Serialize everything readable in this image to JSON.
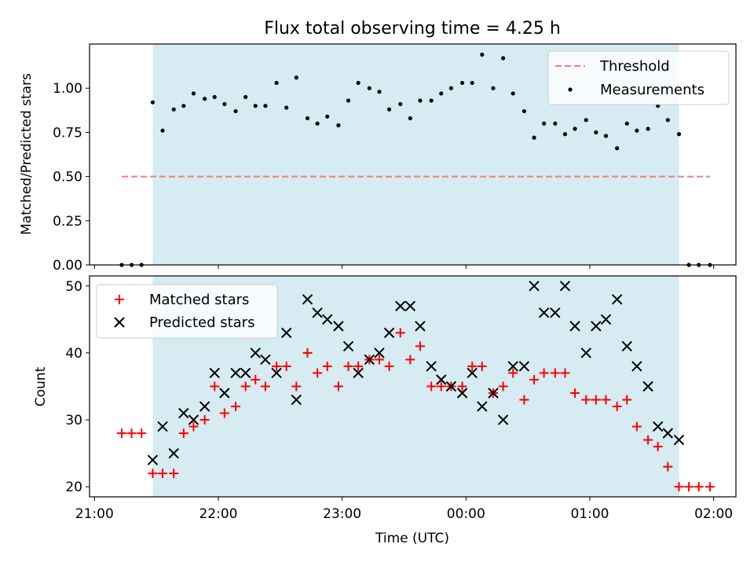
{
  "chart_data": [
    {
      "type": "scatter",
      "title": "Flux total observing time = 4.25 h",
      "ylabel": "Matched/Predicted stars",
      "xlabel": "",
      "xlim": [
        -0.04,
        5.18
      ],
      "ylim": [
        0,
        1.25
      ],
      "yticks": [
        0,
        0.25,
        0.5,
        0.75,
        1.0
      ],
      "ytick_labels": [
        "0.00",
        "0.25",
        "0.50",
        "0.75",
        "1.00"
      ],
      "xticks": [
        0,
        1,
        2,
        3,
        4,
        5
      ],
      "shade": {
        "start": 0.47,
        "end": 4.72,
        "color": "#add8e6"
      },
      "legend": {
        "position": "top-right",
        "threshold_label": "Threshold",
        "measurements_label": "Measurements"
      },
      "threshold": {
        "name": "Threshold",
        "value": 0.5,
        "x_start": 0.22,
        "x_end": 4.97,
        "color": "#ff7777"
      },
      "series": [
        {
          "name": "Measurements",
          "color": "#000000",
          "points": [
            [
              0.22,
              0
            ],
            [
              0.3,
              0
            ],
            [
              0.38,
              0
            ],
            [
              0.47,
              0.92
            ],
            [
              0.55,
              0.76
            ],
            [
              0.64,
              0.88
            ],
            [
              0.72,
              0.9
            ],
            [
              0.8,
              0.97
            ],
            [
              0.89,
              0.94
            ],
            [
              0.97,
              0.95
            ],
            [
              1.05,
              0.91
            ],
            [
              1.14,
              0.87
            ],
            [
              1.22,
              0.95
            ],
            [
              1.3,
              0.9
            ],
            [
              1.38,
              0.9
            ],
            [
              1.47,
              1.03
            ],
            [
              1.55,
              0.89
            ],
            [
              1.63,
              1.06
            ],
            [
              1.72,
              0.83
            ],
            [
              1.8,
              0.8
            ],
            [
              1.88,
              0.84
            ],
            [
              1.97,
              0.79
            ],
            [
              2.05,
              0.93
            ],
            [
              2.13,
              1.03
            ],
            [
              2.22,
              1.0
            ],
            [
              2.3,
              0.98
            ],
            [
              2.38,
              0.88
            ],
            [
              2.47,
              0.91
            ],
            [
              2.55,
              0.83
            ],
            [
              2.63,
              0.93
            ],
            [
              2.72,
              0.93
            ],
            [
              2.8,
              0.97
            ],
            [
              2.88,
              1.0
            ],
            [
              2.97,
              1.03
            ],
            [
              3.05,
              1.03
            ],
            [
              3.13,
              1.19
            ],
            [
              3.22,
              1.0
            ],
            [
              3.3,
              1.17
            ],
            [
              3.38,
              0.97
            ],
            [
              3.47,
              0.87
            ],
            [
              3.55,
              0.72
            ],
            [
              3.63,
              0.8
            ],
            [
              3.72,
              0.8
            ],
            [
              3.8,
              0.74
            ],
            [
              3.88,
              0.77
            ],
            [
              3.97,
              0.82
            ],
            [
              4.05,
              0.75
            ],
            [
              4.13,
              0.73
            ],
            [
              4.22,
              0.66
            ],
            [
              4.3,
              0.8
            ],
            [
              4.38,
              0.76
            ],
            [
              4.47,
              0.77
            ],
            [
              4.55,
              0.9
            ],
            [
              4.63,
              0.82
            ],
            [
              4.72,
              0.74
            ],
            [
              4.8,
              0
            ],
            [
              4.88,
              0
            ],
            [
              4.97,
              0
            ]
          ]
        }
      ]
    },
    {
      "type": "scatter",
      "title": "",
      "xlabel": "Time (UTC)",
      "ylabel": "Count",
      "xlim": [
        -0.04,
        5.18
      ],
      "ylim": [
        18.5,
        51.5
      ],
      "yticks": [
        20,
        30,
        40,
        50
      ],
      "ytick_labels": [
        "20",
        "30",
        "40",
        "50"
      ],
      "xticks": [
        0,
        1,
        2,
        3,
        4,
        5
      ],
      "xtick_labels": [
        "21:00",
        "22:00",
        "23:00",
        "00:00",
        "01:00",
        "02:00"
      ],
      "shade": {
        "start": 0.47,
        "end": 4.72,
        "color": "#add8e6"
      },
      "legend": {
        "position": "top-left",
        "matched_label": "Matched stars",
        "predicted_label": "Predicted stars"
      },
      "series": [
        {
          "name": "Matched stars",
          "marker": "plus",
          "color": "#ff0000",
          "points": [
            [
              0.22,
              28
            ],
            [
              0.3,
              28
            ],
            [
              0.38,
              28
            ],
            [
              0.47,
              22
            ],
            [
              0.55,
              22
            ],
            [
              0.64,
              22
            ],
            [
              0.72,
              28
            ],
            [
              0.8,
              29
            ],
            [
              0.89,
              30
            ],
            [
              0.97,
              35
            ],
            [
              1.05,
              31
            ],
            [
              1.14,
              32
            ],
            [
              1.22,
              35
            ],
            [
              1.3,
              36
            ],
            [
              1.38,
              35
            ],
            [
              1.47,
              38
            ],
            [
              1.55,
              38
            ],
            [
              1.63,
              35
            ],
            [
              1.72,
              40
            ],
            [
              1.8,
              37
            ],
            [
              1.88,
              38
            ],
            [
              1.97,
              35
            ],
            [
              2.05,
              38
            ],
            [
              2.13,
              38
            ],
            [
              2.22,
              39
            ],
            [
              2.3,
              39
            ],
            [
              2.38,
              38
            ],
            [
              2.47,
              43
            ],
            [
              2.55,
              39
            ],
            [
              2.63,
              41
            ],
            [
              2.72,
              35
            ],
            [
              2.8,
              35
            ],
            [
              2.88,
              35
            ],
            [
              2.97,
              35
            ],
            [
              3.05,
              38
            ],
            [
              3.13,
              38
            ],
            [
              3.22,
              34
            ],
            [
              3.3,
              35
            ],
            [
              3.38,
              37
            ],
            [
              3.47,
              33
            ],
            [
              3.55,
              36
            ],
            [
              3.63,
              37
            ],
            [
              3.72,
              37
            ],
            [
              3.8,
              37
            ],
            [
              3.88,
              34
            ],
            [
              3.97,
              33
            ],
            [
              4.05,
              33
            ],
            [
              4.13,
              33
            ],
            [
              4.22,
              32
            ],
            [
              4.3,
              33
            ],
            [
              4.38,
              29
            ],
            [
              4.47,
              27
            ],
            [
              4.55,
              26
            ],
            [
              4.63,
              23
            ],
            [
              4.72,
              20
            ],
            [
              4.8,
              20
            ],
            [
              4.88,
              20
            ],
            [
              4.97,
              20
            ]
          ]
        },
        {
          "name": "Predicted stars",
          "marker": "x",
          "color": "#000000",
          "points": [
            [
              0.47,
              24
            ],
            [
              0.55,
              29
            ],
            [
              0.64,
              25
            ],
            [
              0.72,
              31
            ],
            [
              0.8,
              30
            ],
            [
              0.89,
              32
            ],
            [
              0.97,
              37
            ],
            [
              1.05,
              34
            ],
            [
              1.14,
              37
            ],
            [
              1.22,
              37
            ],
            [
              1.3,
              40
            ],
            [
              1.38,
              39
            ],
            [
              1.47,
              37
            ],
            [
              1.55,
              43
            ],
            [
              1.63,
              33
            ],
            [
              1.72,
              48
            ],
            [
              1.8,
              46
            ],
            [
              1.88,
              45
            ],
            [
              1.97,
              44
            ],
            [
              2.05,
              41
            ],
            [
              2.13,
              37
            ],
            [
              2.22,
              39
            ],
            [
              2.3,
              40
            ],
            [
              2.38,
              43
            ],
            [
              2.47,
              47
            ],
            [
              2.55,
              47
            ],
            [
              2.63,
              44
            ],
            [
              2.72,
              38
            ],
            [
              2.8,
              36
            ],
            [
              2.88,
              35
            ],
            [
              2.97,
              34
            ],
            [
              3.05,
              37
            ],
            [
              3.13,
              32
            ],
            [
              3.22,
              34
            ],
            [
              3.3,
              30
            ],
            [
              3.38,
              38
            ],
            [
              3.47,
              38
            ],
            [
              3.55,
              50
            ],
            [
              3.63,
              46
            ],
            [
              3.72,
              46
            ],
            [
              3.8,
              50
            ],
            [
              3.88,
              44
            ],
            [
              3.97,
              40
            ],
            [
              4.05,
              44
            ],
            [
              4.13,
              45
            ],
            [
              4.22,
              48
            ],
            [
              4.3,
              41
            ],
            [
              4.38,
              38
            ],
            [
              4.47,
              35
            ],
            [
              4.55,
              29
            ],
            [
              4.63,
              28
            ],
            [
              4.72,
              27
            ]
          ]
        }
      ]
    }
  ]
}
